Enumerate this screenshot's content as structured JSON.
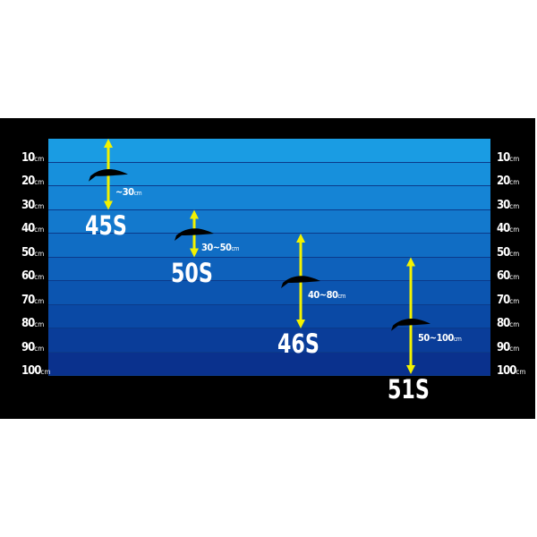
{
  "depth_scale": {
    "unit": "cm",
    "ticks": [
      "10",
      "20",
      "30",
      "40",
      "50",
      "60",
      "70",
      "80",
      "90",
      "100"
    ]
  },
  "colors": {
    "background": "#000000",
    "water_top": "#1a9be2",
    "water_bottom": "#0a2a8a",
    "arrow": "#f2f200",
    "text": "#ffffff"
  },
  "lures": [
    {
      "name": "45S",
      "range": "~30",
      "range_unit": "cm",
      "min_depth_cm": 0,
      "max_depth_cm": 30
    },
    {
      "name": "50S",
      "range": "30~50",
      "range_unit": "cm",
      "min_depth_cm": 30,
      "max_depth_cm": 50
    },
    {
      "name": "46S",
      "range": "40~80",
      "range_unit": "cm",
      "min_depth_cm": 40,
      "max_depth_cm": 80
    },
    {
      "name": "51S",
      "range": "50~100",
      "range_unit": "cm",
      "min_depth_cm": 50,
      "max_depth_cm": 100
    }
  ]
}
